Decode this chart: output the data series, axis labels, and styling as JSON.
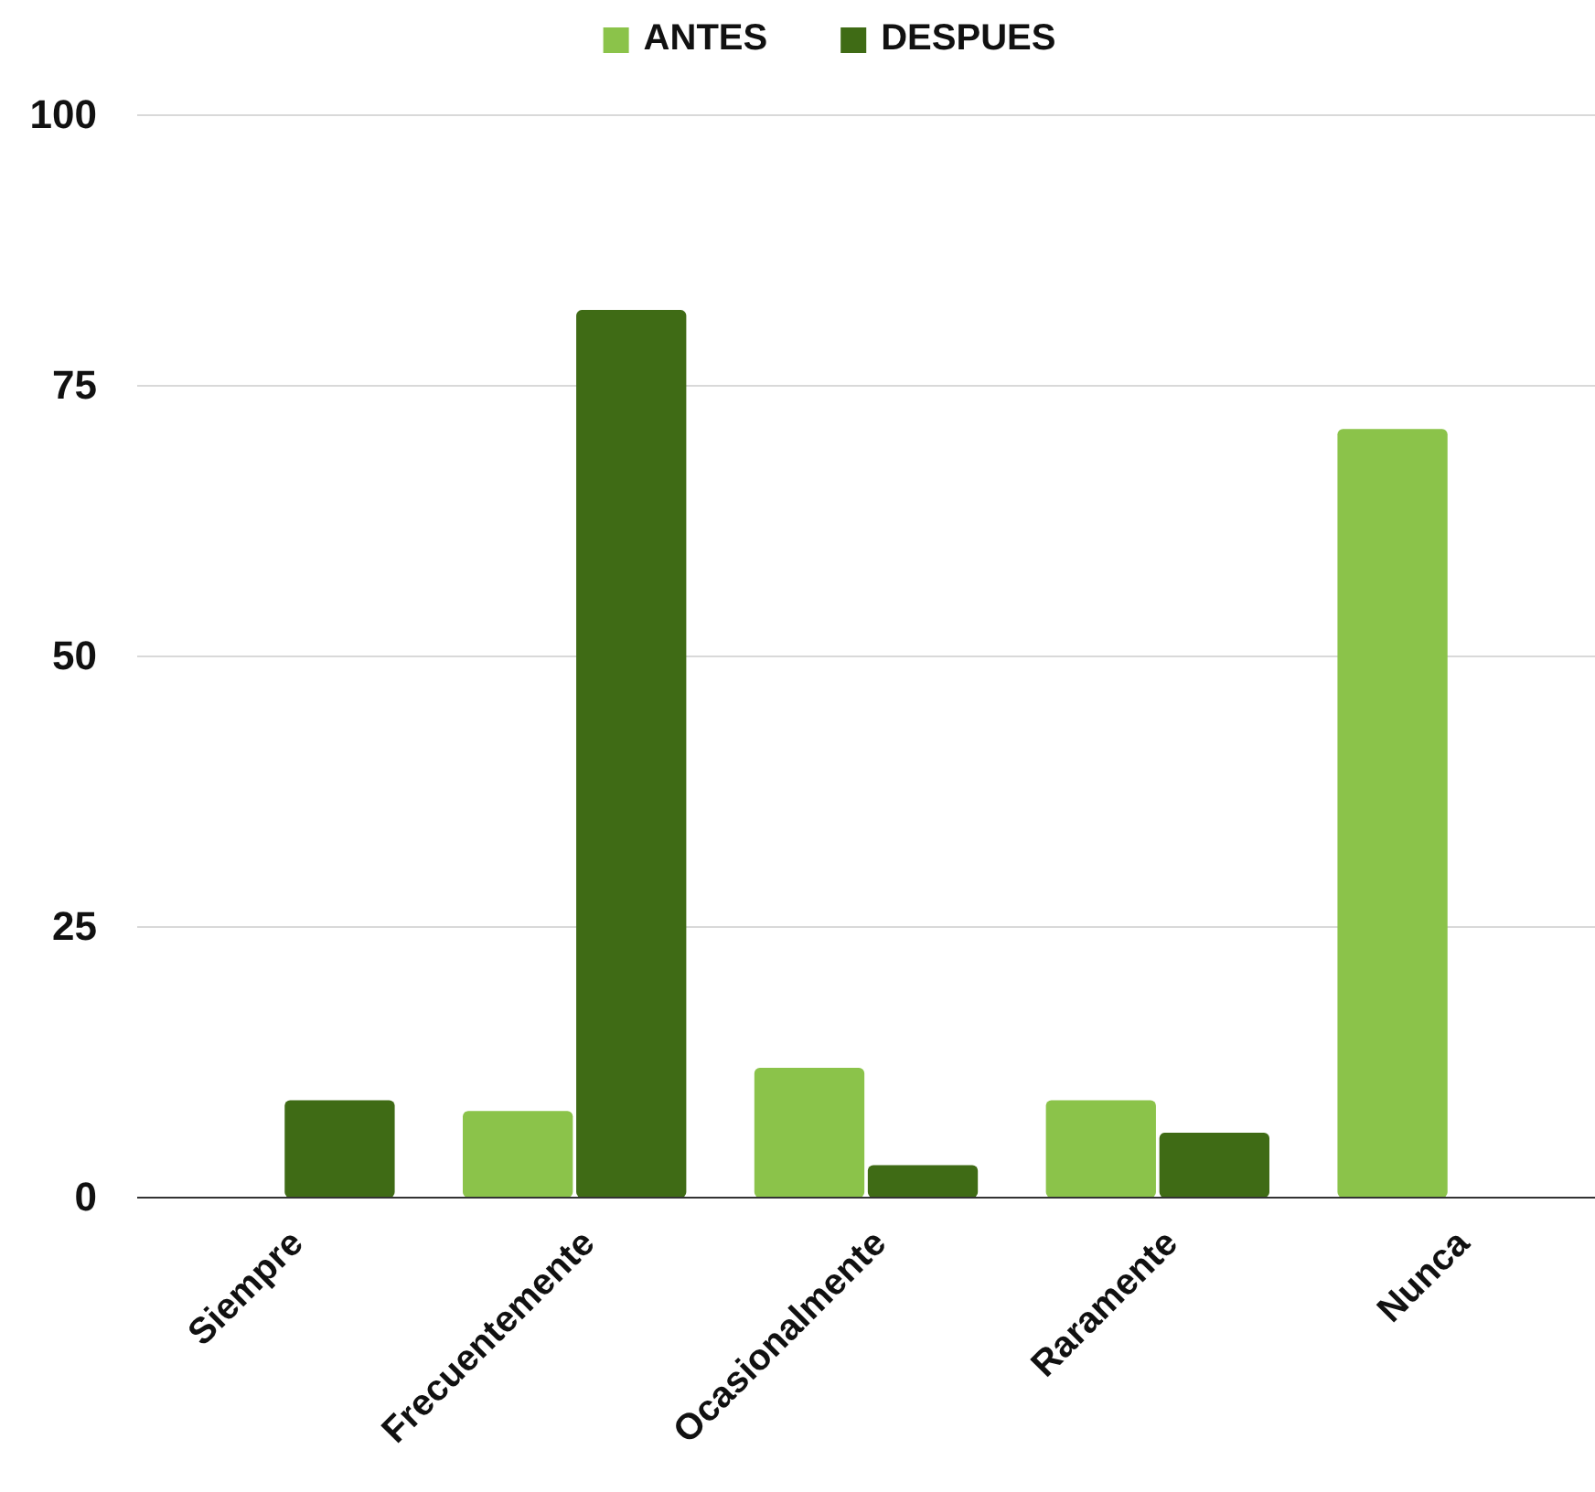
{
  "chart_data": {
    "type": "bar",
    "categories": [
      "Siempre",
      "Frecuentemente",
      "Ocasionalmente",
      "Raramente",
      "Nunca"
    ],
    "series": [
      {
        "name": "ANTES",
        "color": "#8bc34a",
        "values": [
          0,
          8,
          12,
          9,
          71
        ]
      },
      {
        "name": "DESPUES",
        "color": "#3f6b15",
        "values": [
          9,
          82,
          3,
          6,
          0
        ]
      }
    ],
    "ylim": [
      0,
      100
    ],
    "yticks": [
      0,
      25,
      50,
      75,
      100
    ],
    "grid": "y",
    "legend": "top"
  }
}
